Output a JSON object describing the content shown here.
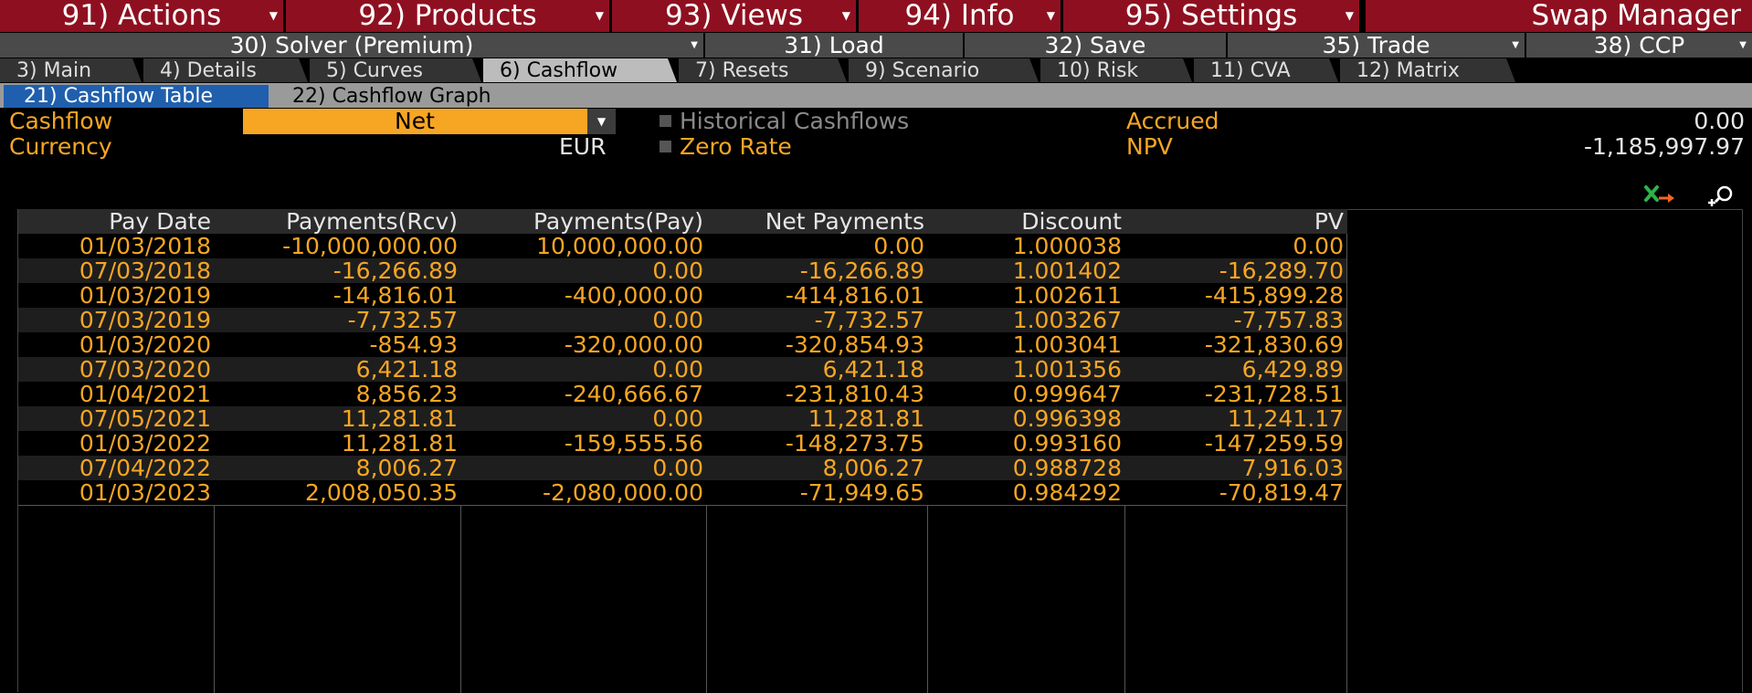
{
  "menubar": {
    "actions": "91) Actions",
    "products": "92) Products",
    "views": "93) Views",
    "info": "94) Info",
    "settings": "95) Settings",
    "app_title": "Swap Manager"
  },
  "toolbar": {
    "solver": "30) Solver (Premium)",
    "load": "31) Load",
    "save": "32) Save",
    "trade": "35) Trade",
    "ccp": "38) CCP"
  },
  "tabs": [
    "3) Main",
    "4) Details",
    "5) Curves",
    "6) Cashflow",
    "7) Resets",
    "9) Scenario",
    "10) Risk",
    "11) CVA",
    "12) Matrix"
  ],
  "subtabs": [
    "21) Cashflow Table",
    "22) Cashflow Graph"
  ],
  "controls": {
    "cashflow_label": "Cashflow",
    "cashflow_value": "Net",
    "currency_label": "Currency",
    "currency_value": "EUR",
    "historical_label": "Historical Cashflows",
    "zero_rate_label": "Zero Rate",
    "accrued_label": "Accrued",
    "accrued_value": "0.00",
    "npv_label": "NPV",
    "npv_value": "-1,185,997.97"
  },
  "icons": {
    "excel": "excel-export-icon",
    "zoom": "zoom-plus-icon"
  },
  "table": {
    "headers": [
      "Pay Date",
      "Payments(Rcv)",
      "Payments(Pay)",
      "Net Payments",
      "Discount",
      "PV"
    ],
    "rows": [
      [
        "01/03/2018",
        "-10,000,000.00",
        "10,000,000.00",
        "0.00",
        "1.000038",
        "0.00"
      ],
      [
        "07/03/2018",
        "-16,266.89",
        "0.00",
        "-16,266.89",
        "1.001402",
        "-16,289.70"
      ],
      [
        "01/03/2019",
        "-14,816.01",
        "-400,000.00",
        "-414,816.01",
        "1.002611",
        "-415,899.28"
      ],
      [
        "07/03/2019",
        "-7,732.57",
        "0.00",
        "-7,732.57",
        "1.003267",
        "-7,757.83"
      ],
      [
        "01/03/2020",
        "-854.93",
        "-320,000.00",
        "-320,854.93",
        "1.003041",
        "-321,830.69"
      ],
      [
        "07/03/2020",
        "6,421.18",
        "0.00",
        "6,421.18",
        "1.001356",
        "6,429.89"
      ],
      [
        "01/04/2021",
        "8,856.23",
        "-240,666.67",
        "-231,810.43",
        "0.999647",
        "-231,728.51"
      ],
      [
        "07/05/2021",
        "11,281.81",
        "0.00",
        "11,281.81",
        "0.996398",
        "11,241.17"
      ],
      [
        "01/03/2022",
        "11,281.81",
        "-159,555.56",
        "-148,273.75",
        "0.993160",
        "-147,259.59"
      ],
      [
        "07/04/2022",
        "8,006.27",
        "0.00",
        "8,006.27",
        "0.988728",
        "7,916.03"
      ],
      [
        "01/03/2023",
        "2,008,050.35",
        "-2,080,000.00",
        "-71,949.65",
        "0.984292",
        "-70,819.47"
      ]
    ]
  },
  "colors": {
    "menu_red": "#8e1020",
    "amber": "#f6a623",
    "active_blue": "#1f5fae",
    "background": "#000000"
  }
}
